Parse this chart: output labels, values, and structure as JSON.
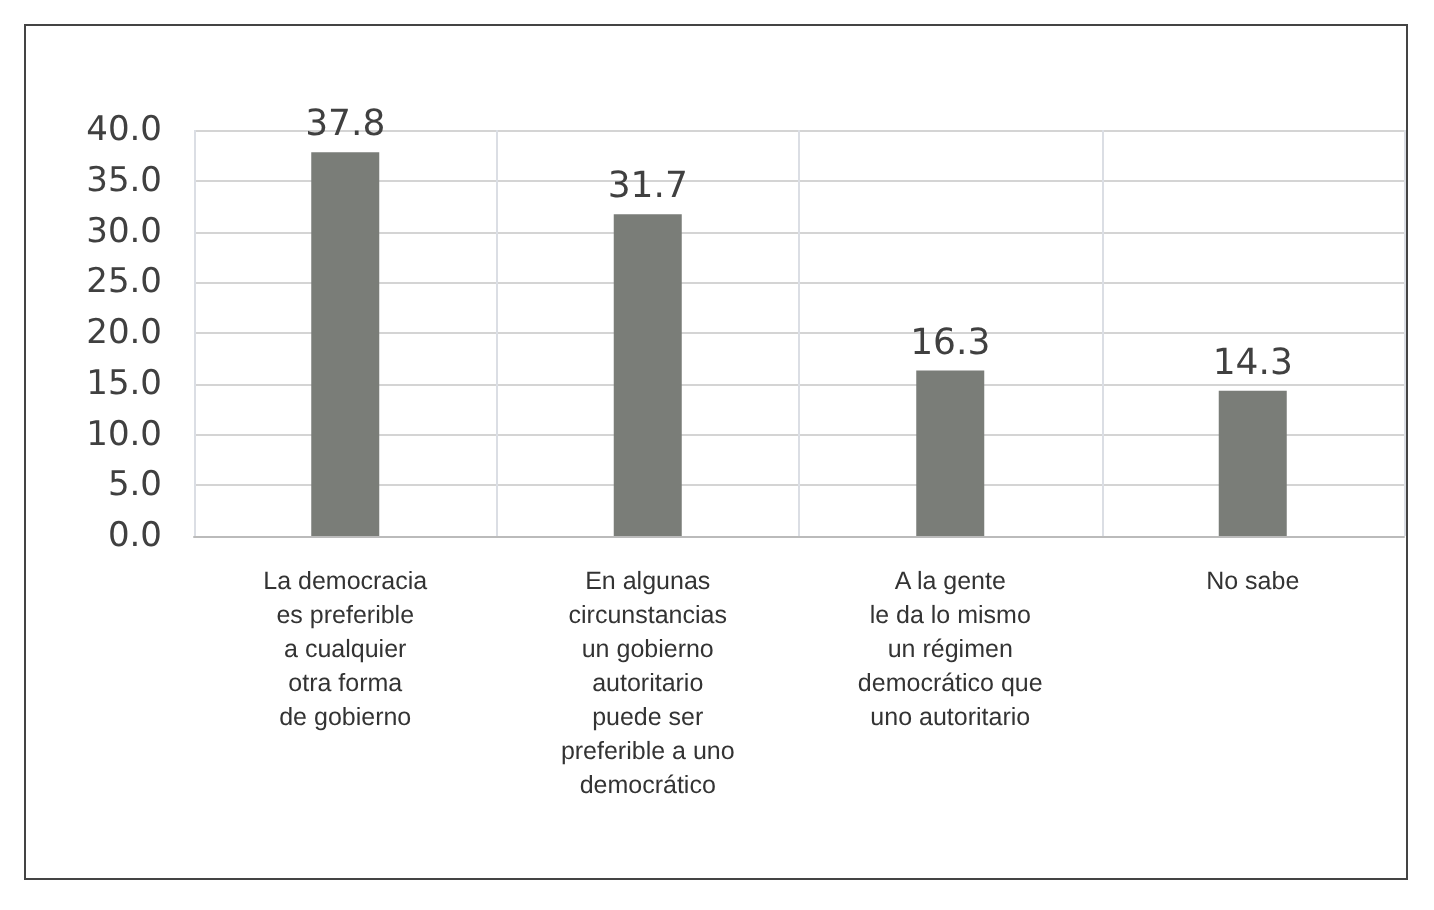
{
  "chart_data": {
    "type": "bar",
    "categories": [
      "La democracia\nes preferible\na cualquier\notra forma\nde gobierno",
      "En algunas\ncircunstancias\nun gobierno\nautoritario\npuede ser\npreferible a uno\ndemocrático",
      "A la gente\nle da lo mismo\nun régimen\ndemocrático que\nuno autoritario",
      "No sabe"
    ],
    "values": [
      37.8,
      31.7,
      16.3,
      14.3
    ],
    "color": "#7a7d78",
    "ylim": [
      0,
      40
    ],
    "yticks": [
      {
        "value": 0,
        "label": "0.0"
      },
      {
        "value": 5,
        "label": "5.0"
      },
      {
        "value": 10,
        "label": "10.0"
      },
      {
        "value": 15,
        "label": "15.0"
      },
      {
        "value": 20,
        "label": "20.0"
      },
      {
        "value": 25,
        "label": "25.0"
      },
      {
        "value": 30,
        "label": "30.0"
      },
      {
        "value": 35,
        "label": "35.0"
      },
      {
        "value": 40,
        "label": "40.0"
      }
    ],
    "grid": true,
    "data_labels": true
  }
}
